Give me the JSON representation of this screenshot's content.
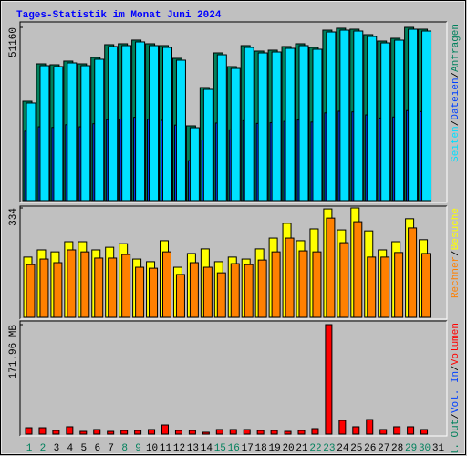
{
  "chart_data": [
    {
      "type": "bar",
      "title": "Tages-Statistik im Monat Juni 2024",
      "ylim": [
        0,
        51160
      ],
      "yticks": [
        51160
      ],
      "legend_separator": "/",
      "series": [
        {
          "name": "Anfragen",
          "color": "#00805c",
          "values": [
            29350,
            40390,
            40120,
            41200,
            40390,
            42280,
            46050,
            46320,
            47400,
            46320,
            45780,
            42010,
            22080,
            33390,
            43620,
            39580,
            45780,
            44160,
            44430,
            45510,
            46320,
            45240,
            50350,
            50900,
            50620,
            49010,
            47120,
            47930,
            51160,
            50620,
            null
          ]
        },
        {
          "name": "Dateien",
          "color": "#0040ff",
          "values": [
            20500,
            21800,
            21600,
            22400,
            21800,
            22700,
            23900,
            24100,
            24600,
            24000,
            23700,
            22300,
            11800,
            17900,
            22900,
            20900,
            23600,
            22800,
            23000,
            23400,
            23800,
            23200,
            25900,
            26400,
            26200,
            25300,
            24400,
            24700,
            26600,
            26300,
            null
          ]
        },
        {
          "name": "Seiten",
          "color": "#00e0ff",
          "values": [
            28820,
            39850,
            39590,
            40660,
            39850,
            41740,
            45510,
            45780,
            46860,
            45780,
            45240,
            41470,
            21540,
            32850,
            43080,
            39040,
            45240,
            43620,
            43890,
            44970,
            45780,
            44700,
            49810,
            50350,
            50080,
            48470,
            46580,
            47390,
            50620,
            50080,
            null
          ]
        }
      ]
    },
    {
      "type": "bar",
      "ylim": [
        0,
        334
      ],
      "yticks": [
        334
      ],
      "legend_separator": "/",
      "series": [
        {
          "name": "Besuche",
          "color": "#ffff00",
          "values": [
            184,
            206,
            200,
            231,
            231,
            206,
            214,
            225,
            178,
            170,
            234,
            153,
            195,
            209,
            170,
            184,
            178,
            209,
            242,
            287,
            234,
            270,
            331,
            267,
            334,
            264,
            206,
            231,
            301,
            237,
            null
          ]
        },
        {
          "name": "Rechner",
          "color": "#ff8000",
          "values": [
            161,
            178,
            167,
            206,
            200,
            181,
            181,
            192,
            153,
            150,
            200,
            131,
            167,
            153,
            136,
            164,
            161,
            175,
            200,
            242,
            203,
            200,
            303,
            228,
            292,
            184,
            184,
            198,
            273,
            195,
            null
          ]
        }
      ]
    },
    {
      "type": "bar",
      "ylim": [
        0,
        171.96
      ],
      "yticks": [
        {
          "value": 171.96,
          "label": "171.96 MB"
        }
      ],
      "legend_separator": "/",
      "categories": [
        "1",
        "2",
        "3",
        "4",
        "5",
        "6",
        "7",
        "8",
        "9",
        "10",
        "11",
        "12",
        "13",
        "14",
        "15",
        "16",
        "17",
        "18",
        "19",
        "20",
        "21",
        "22",
        "23",
        "24",
        "25",
        "26",
        "27",
        "28",
        "29",
        "30",
        "31"
      ],
      "category_colors": [
        "#00805c",
        "#00805c",
        "#000000",
        "#000000",
        "#000000",
        "#000000",
        "#000000",
        "#00805c",
        "#00805c",
        "#000000",
        "#000000",
        "#000000",
        "#000000",
        "#000000",
        "#00805c",
        "#00805c",
        "#000000",
        "#000000",
        "#000000",
        "#000000",
        "#000000",
        "#00805c",
        "#00805c",
        "#000000",
        "#000000",
        "#000000",
        "#000000",
        "#000000",
        "#00805c",
        "#00805c",
        "#000000"
      ],
      "series": [
        {
          "name": "Volumen",
          "color": "#ff0000",
          "values": [
            10.0,
            10.0,
            5.7,
            11.5,
            4.3,
            7.2,
            4.3,
            5.7,
            5.7,
            7.2,
            14.3,
            5.7,
            5.7,
            2.9,
            7.2,
            7.2,
            7.2,
            5.7,
            5.7,
            4.3,
            5.7,
            8.6,
            171.96,
            21.5,
            11.5,
            22.9,
            7.2,
            11.5,
            11.5,
            7.2,
            null
          ]
        },
        {
          "name": "Vol. In",
          "color": "#0040ff",
          "values": [
            null,
            null,
            null,
            null,
            null,
            null,
            null,
            null,
            null,
            null,
            null,
            null,
            null,
            null,
            null,
            null,
            null,
            null,
            null,
            null,
            null,
            null,
            null,
            null,
            null,
            null,
            null,
            null,
            null,
            null,
            null
          ]
        },
        {
          "name": "Vol. Out",
          "color": "#00805c",
          "values": [
            null,
            null,
            null,
            null,
            null,
            null,
            null,
            null,
            null,
            null,
            null,
            null,
            null,
            null,
            null,
            null,
            null,
            null,
            null,
            null,
            null,
            null,
            null,
            null,
            null,
            null,
            null,
            null,
            null,
            null,
            null
          ]
        }
      ]
    }
  ]
}
